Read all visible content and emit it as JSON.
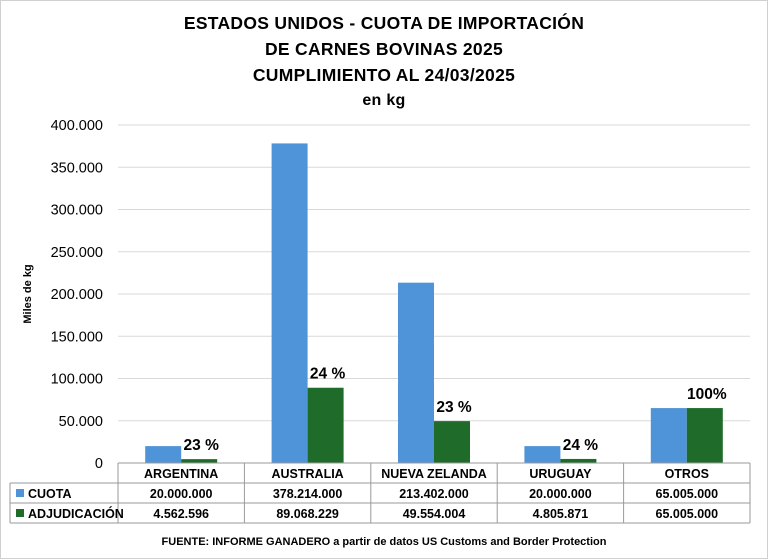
{
  "titles": {
    "line1": "ESTADOS UNIDOS - CUOTA DE IMPORTACIÓN",
    "line2": "DE CARNES BOVINAS 2025",
    "line3": "CUMPLIMIENTO AL 24/03/2025",
    "line4": "en kg"
  },
  "source": "FUENTE:  INFORME GANADERO  a partir de datos US Customs and Border Protection",
  "colors": {
    "cuota": "#4f94d9",
    "adjudicacion": "#1e6b2a",
    "grid": "#d9d9d9",
    "table_border": "#9a9a9a"
  },
  "chart_data": {
    "type": "bar",
    "ylabel": "Miles de kg",
    "ylim": [
      0,
      400000
    ],
    "yticks": [
      "0",
      "50.000",
      "100.000",
      "150.000",
      "200.000",
      "250.000",
      "300.000",
      "350.000",
      "400.000"
    ],
    "categories": [
      "ARGENTINA",
      "AUSTRALIA",
      "NUEVA ZELANDA",
      "URUGUAY",
      "OTROS"
    ],
    "series": [
      {
        "name": "CUOTA",
        "values": [
          20000,
          378214,
          213402,
          20000,
          65005
        ],
        "labels": [
          "20.000.000",
          "378.214.000",
          "213.402.000",
          "20.000.000",
          "65.005.000"
        ]
      },
      {
        "name": "ADJUDICACIÓN",
        "values": [
          4562.596,
          89068.229,
          49554.004,
          4805.871,
          65005
        ],
        "labels": [
          "4.562.596",
          "89.068.229",
          "49.554.004",
          "4.805.871",
          "65.005.000"
        ]
      }
    ],
    "percent_labels": [
      "23 %",
      "24 %",
      "23 %",
      "24 %",
      "100%"
    ],
    "grid": true,
    "legend": "data-table"
  }
}
